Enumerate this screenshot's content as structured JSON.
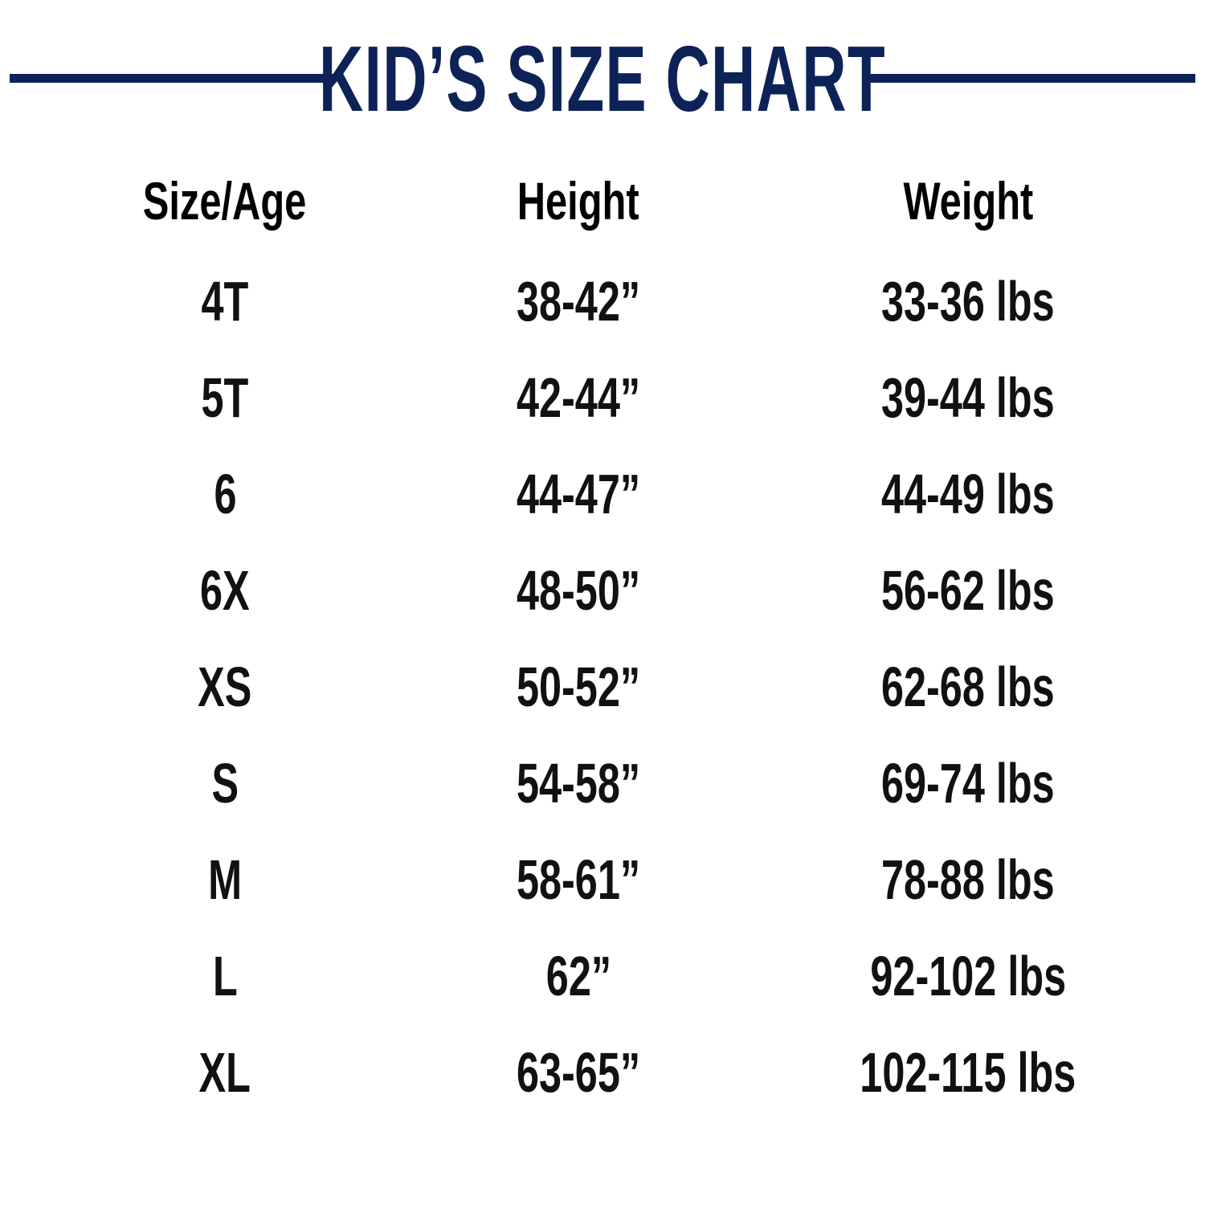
{
  "title": "KID’S SIZE CHART",
  "accent_color": "#0d2357",
  "chart_data": {
    "type": "table",
    "title": "KID’S SIZE CHART",
    "columns": [
      "Size/Age",
      "Height",
      "Weight"
    ],
    "rows": [
      [
        "4T",
        "38-42”",
        "33-36 lbs"
      ],
      [
        "5T",
        "42-44”",
        "39-44 lbs"
      ],
      [
        "6",
        "44-47”",
        "44-49 lbs"
      ],
      [
        "6X",
        "48-50”",
        "56-62 lbs"
      ],
      [
        "XS",
        "50-52”",
        "62-68 lbs"
      ],
      [
        "S",
        "54-58”",
        "69-74 lbs"
      ],
      [
        "M",
        "58-61”",
        "78-88 lbs"
      ],
      [
        "L",
        "62”",
        "92-102 lbs"
      ],
      [
        "XL",
        "63-65”",
        "102-115 lbs"
      ]
    ]
  }
}
